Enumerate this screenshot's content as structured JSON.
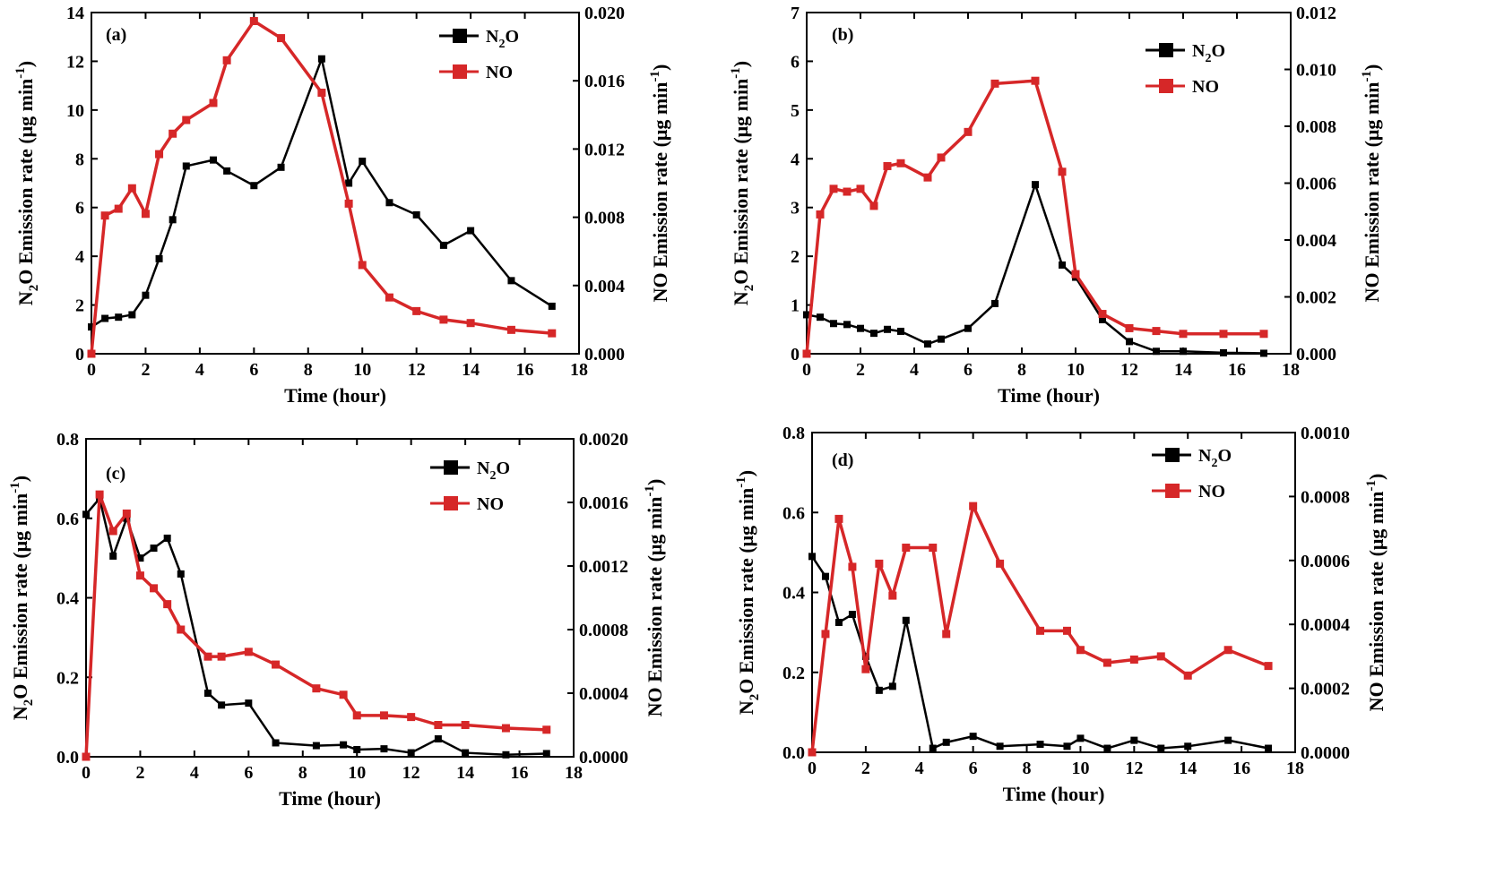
{
  "chart_data": [
    {
      "type": "line",
      "panel_label": "(a)",
      "xlabel": "Time (hour)",
      "ylabel_left": "N₂O Emission rate (μg min⁻¹)",
      "ylabel_right": "NO Emission rate (μg min⁻¹)",
      "xlim": [
        0,
        18
      ],
      "xticks": [
        "0",
        "2",
        "4",
        "6",
        "8",
        "10",
        "12",
        "14",
        "16",
        "18"
      ],
      "ylim_left": [
        0,
        14
      ],
      "yticks_left": [
        "0",
        "2",
        "4",
        "6",
        "8",
        "10",
        "12",
        "14"
      ],
      "ylim_right": [
        0,
        0.02
      ],
      "yticks_right": [
        "0.000",
        "0.004",
        "0.008",
        "0.012",
        "0.016",
        "0.020"
      ],
      "legend_position": "top-right",
      "series": [
        {
          "name": "N₂O",
          "axis": "left",
          "color": "#000000",
          "x": [
            0,
            0.5,
            1,
            1.5,
            2,
            2.5,
            3,
            3.5,
            4.5,
            5,
            6,
            7,
            8.5,
            9.5,
            10,
            11,
            12,
            13,
            14,
            15.5,
            17
          ],
          "y": [
            1.1,
            1.45,
            1.5,
            1.6,
            2.4,
            3.9,
            5.5,
            7.7,
            7.95,
            7.5,
            6.9,
            7.65,
            12.1,
            7.0,
            7.9,
            6.2,
            5.7,
            4.45,
            5.05,
            3.0,
            1.95
          ]
        },
        {
          "name": "NO",
          "axis": "right",
          "color": "#d62728",
          "x": [
            0,
            0.5,
            1,
            1.5,
            2,
            2.5,
            3,
            3.5,
            4.5,
            5,
            6,
            7,
            8.5,
            9.5,
            10,
            11,
            12,
            13,
            14,
            15.5,
            17
          ],
          "y": [
            0.0,
            0.0081,
            0.0085,
            0.0097,
            0.0082,
            0.0117,
            0.0129,
            0.0137,
            0.0147,
            0.0172,
            0.0195,
            0.0185,
            0.0153,
            0.0088,
            0.0052,
            0.0033,
            0.0025,
            0.002,
            0.0018,
            0.0014,
            0.0012
          ]
        }
      ]
    },
    {
      "type": "line",
      "panel_label": "(b)",
      "xlabel": "Time (hour)",
      "ylabel_left": "N₂O Emission rate (μg min⁻¹)",
      "ylabel_right": "NO Emission rate (μg min⁻¹)",
      "xlim": [
        0,
        18
      ],
      "xticks": [
        "0",
        "2",
        "4",
        "6",
        "8",
        "10",
        "12",
        "14",
        "16",
        "18"
      ],
      "ylim_left": [
        0,
        7
      ],
      "yticks_left": [
        "0",
        "1",
        "2",
        "3",
        "4",
        "5",
        "6",
        "7"
      ],
      "ylim_right": [
        0,
        0.012
      ],
      "yticks_right": [
        "0.000",
        "0.002",
        "0.004",
        "0.006",
        "0.008",
        "0.010",
        "0.012"
      ],
      "legend_position": "top-right",
      "series": [
        {
          "name": "N₂O",
          "axis": "left",
          "color": "#000000",
          "x": [
            0,
            0.5,
            1,
            1.5,
            2,
            2.5,
            3,
            3.5,
            4.5,
            5,
            6,
            7,
            8.5,
            9.5,
            10,
            11,
            12,
            13,
            14,
            15.5,
            17
          ],
          "y": [
            0.8,
            0.75,
            0.62,
            0.6,
            0.52,
            0.42,
            0.5,
            0.46,
            0.2,
            0.3,
            0.52,
            1.03,
            3.47,
            1.82,
            1.57,
            0.7,
            0.25,
            0.05,
            0.05,
            0.02,
            0.01
          ]
        },
        {
          "name": "NO",
          "axis": "right",
          "color": "#d62728",
          "x": [
            0,
            0.5,
            1,
            1.5,
            2,
            2.5,
            3,
            3.5,
            4.5,
            5,
            6,
            7,
            8.5,
            9.5,
            10,
            11,
            12,
            13,
            14,
            15.5,
            17
          ],
          "y": [
            0.0,
            0.0049,
            0.0058,
            0.0057,
            0.0058,
            0.0052,
            0.0066,
            0.0067,
            0.0062,
            0.0069,
            0.0078,
            0.0095,
            0.0096,
            0.0064,
            0.0028,
            0.0014,
            0.0009,
            0.0008,
            0.0007,
            0.0007,
            0.0007
          ]
        }
      ]
    },
    {
      "type": "line",
      "panel_label": "(c)",
      "xlabel": "Time (hour)",
      "ylabel_left": "N₂O Emission rate (μg min⁻¹)",
      "ylabel_right": "NO Emission rate (μg min⁻¹)",
      "xlim": [
        0,
        18
      ],
      "xticks": [
        "0",
        "2",
        "4",
        "6",
        "8",
        "10",
        "12",
        "14",
        "16",
        "18"
      ],
      "ylim_left": [
        0,
        0.8
      ],
      "yticks_left": [
        "0.0",
        "0.2",
        "0.4",
        "0.6",
        "0.8"
      ],
      "ylim_right": [
        0,
        0.002
      ],
      "yticks_right": [
        "0.0000",
        "0.0004",
        "0.0008",
        "0.0012",
        "0.0016",
        "0.0020"
      ],
      "legend_position": "top-right",
      "series": [
        {
          "name": "N₂O",
          "axis": "left",
          "color": "#000000",
          "x": [
            0,
            0.5,
            1,
            1.5,
            2,
            2.5,
            3,
            3.5,
            4.5,
            5,
            6,
            7,
            8.5,
            9.5,
            10,
            11,
            12,
            13,
            14,
            15.5,
            17
          ],
          "y": [
            0.61,
            0.65,
            0.505,
            0.6,
            0.5,
            0.525,
            0.55,
            0.46,
            0.16,
            0.13,
            0.135,
            0.035,
            0.028,
            0.03,
            0.018,
            0.02,
            0.01,
            0.045,
            0.01,
            0.005,
            0.008
          ]
        },
        {
          "name": "NO",
          "axis": "right",
          "color": "#d62728",
          "x": [
            0,
            0.5,
            1,
            1.5,
            2,
            2.5,
            3,
            3.5,
            4.5,
            5,
            6,
            7,
            8.5,
            9.5,
            10,
            11,
            12,
            13,
            14,
            15.5,
            17
          ],
          "y": [
            0.0,
            0.00165,
            0.00142,
            0.00153,
            0.00114,
            0.00106,
            0.00096,
            0.0008,
            0.00063,
            0.00063,
            0.00066,
            0.00058,
            0.00043,
            0.00039,
            0.00026,
            0.00026,
            0.00025,
            0.0002,
            0.0002,
            0.00018,
            0.00017
          ]
        }
      ]
    },
    {
      "type": "line",
      "panel_label": "(d)",
      "xlabel": "Time (hour)",
      "ylabel_left": "N₂O Emission rate (μg min⁻¹)",
      "ylabel_right": "NO Emission rate (μg min⁻¹)",
      "xlim": [
        0,
        18
      ],
      "xticks": [
        "0",
        "2",
        "4",
        "6",
        "8",
        "10",
        "12",
        "14",
        "16",
        "18"
      ],
      "ylim_left": [
        0,
        0.8
      ],
      "yticks_left": [
        "0.0",
        "0.2",
        "0.4",
        "0.6",
        "0.8"
      ],
      "ylim_right": [
        0,
        0.001
      ],
      "yticks_right": [
        "0.0000",
        "0.0002",
        "0.0004",
        "0.0006",
        "0.0008",
        "0.0010"
      ],
      "legend_position": "top-right",
      "series": [
        {
          "name": "N₂O",
          "axis": "left",
          "color": "#000000",
          "x": [
            0,
            0.5,
            1,
            1.5,
            2,
            2.5,
            3,
            3.5,
            4.5,
            5,
            6,
            7,
            8.5,
            9.5,
            10,
            11,
            12,
            13,
            14,
            15.5,
            17
          ],
          "y": [
            0.49,
            0.44,
            0.325,
            0.345,
            0.24,
            0.155,
            0.165,
            0.33,
            0.01,
            0.025,
            0.04,
            0.015,
            0.02,
            0.015,
            0.035,
            0.01,
            0.03,
            0.01,
            0.015,
            0.03,
            0.01
          ]
        },
        {
          "name": "NO",
          "axis": "right",
          "color": "#d62728",
          "x": [
            0,
            0.5,
            1,
            1.5,
            2,
            2.5,
            3,
            3.5,
            4.5,
            5,
            6,
            7,
            8.5,
            9.5,
            10,
            11,
            12,
            13,
            14,
            15.5,
            17
          ],
          "y": [
            0.0,
            0.00037,
            0.00073,
            0.00058,
            0.00026,
            0.00059,
            0.00049,
            0.00064,
            0.00064,
            0.00037,
            0.00077,
            0.00059,
            0.00038,
            0.00038,
            0.00032,
            0.00028,
            0.00029,
            0.0003,
            0.00024,
            0.00032,
            0.00027
          ]
        }
      ]
    }
  ]
}
